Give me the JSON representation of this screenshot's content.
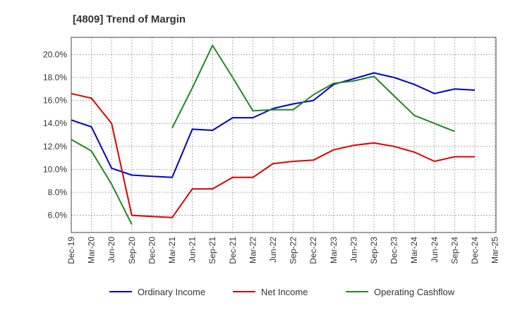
{
  "chart_data": {
    "type": "line",
    "title": "[4809]  Trend of Margin",
    "xlabel": "",
    "ylabel": "",
    "categories": [
      "Dec-19",
      "Mar-20",
      "Jun-20",
      "Sep-20",
      "Dec-20",
      "Mar-21",
      "Jun-21",
      "Sep-21",
      "Dec-21",
      "Mar-22",
      "Jun-22",
      "Sep-22",
      "Dec-22",
      "Mar-23",
      "Jun-23",
      "Sep-23",
      "Dec-23",
      "Mar-24",
      "Jun-24",
      "Sep-24",
      "Dec-24",
      "Mar-25"
    ],
    "y_ticks": [
      "6.0%",
      "8.0%",
      "10.0%",
      "12.0%",
      "14.0%",
      "16.0%",
      "18.0%",
      "20.0%"
    ],
    "ylim": [
      4.5,
      21.5
    ],
    "grid": true,
    "legend_position": "bottom",
    "series": [
      {
        "name": "Ordinary Income",
        "color": "#0000cc",
        "values": [
          14.3,
          13.7,
          10.1,
          9.5,
          9.4,
          9.3,
          13.5,
          13.4,
          14.5,
          14.5,
          15.3,
          15.7,
          16.0,
          17.4,
          17.9,
          18.4,
          18.0,
          17.4,
          16.6,
          17.0,
          16.9,
          null
        ]
      },
      {
        "name": "Net Income",
        "color": "#dd0000",
        "values": [
          16.6,
          16.2,
          14.0,
          6.0,
          5.9,
          5.8,
          8.3,
          8.3,
          9.3,
          9.3,
          10.5,
          10.7,
          10.8,
          11.7,
          12.1,
          12.3,
          12.0,
          11.5,
          10.7,
          11.1,
          11.1,
          null
        ]
      },
      {
        "name": "Operating Cashflow",
        "color": "#228822",
        "values": [
          12.6,
          11.6,
          8.7,
          5.2,
          null,
          13.6,
          17.1,
          20.8,
          18.0,
          15.1,
          15.2,
          15.2,
          16.5,
          17.5,
          17.7,
          18.1,
          16.4,
          14.7,
          14.0,
          13.3,
          null,
          null
        ]
      }
    ]
  }
}
